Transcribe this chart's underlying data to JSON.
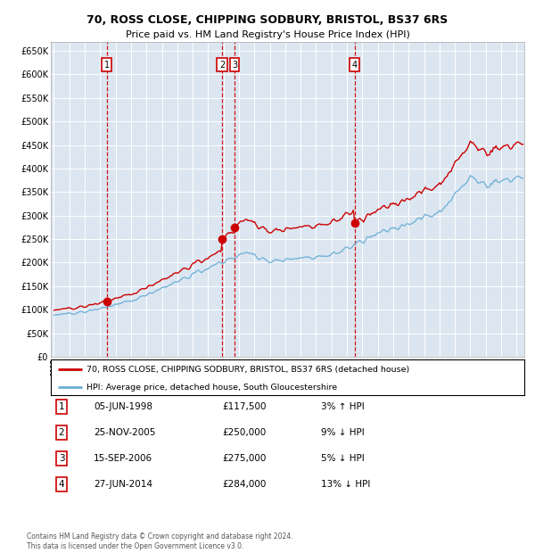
{
  "title1": "70, ROSS CLOSE, CHIPPING SODBURY, BRISTOL, BS37 6RS",
  "title2": "Price paid vs. HM Land Registry's House Price Index (HPI)",
  "background_color": "#dce6f1",
  "plot_bg_color": "#dce6f1",
  "sale_dates": [
    1998.43,
    2005.9,
    2006.71,
    2014.49
  ],
  "sale_prices": [
    117500,
    250000,
    275000,
    284000
  ],
  "sale_labels": [
    "1",
    "2",
    "3",
    "4"
  ],
  "hpi_line_color": "#6aaed6",
  "price_line_color": "#cc0000",
  "sale_marker_color": "#cc0000",
  "vline_color": "#cc0000",
  "grid_color": "#ffffff",
  "legend_entries": [
    "70, ROSS CLOSE, CHIPPING SODBURY, BRISTOL, BS37 6RS (detached house)",
    "HPI: Average price, detached house, South Gloucestershire"
  ],
  "table_data": [
    [
      "1",
      "05-JUN-1998",
      "£117,500",
      "3% ↑ HPI"
    ],
    [
      "2",
      "25-NOV-2005",
      "£250,000",
      "9% ↓ HPI"
    ],
    [
      "3",
      "15-SEP-2006",
      "£275,000",
      "5% ↓ HPI"
    ],
    [
      "4",
      "27-JUN-2014",
      "£284,000",
      "13% ↓ HPI"
    ]
  ],
  "footer": "Contains HM Land Registry data © Crown copyright and database right 2024.\nThis data is licensed under the Open Government Licence v3.0.",
  "ylim": [
    0,
    670000
  ],
  "yticks": [
    0,
    50000,
    100000,
    150000,
    200000,
    250000,
    300000,
    350000,
    400000,
    450000,
    500000,
    550000,
    600000,
    650000
  ],
  "xlim_start": 1994.8,
  "xlim_end": 2025.5,
  "xtick_years": [
    1995,
    1996,
    1997,
    1998,
    1999,
    2000,
    2001,
    2002,
    2003,
    2004,
    2005,
    2006,
    2007,
    2008,
    2009,
    2010,
    2011,
    2012,
    2013,
    2014,
    2015,
    2016,
    2017,
    2018,
    2019,
    2020,
    2021,
    2022,
    2023,
    2024,
    2025
  ]
}
